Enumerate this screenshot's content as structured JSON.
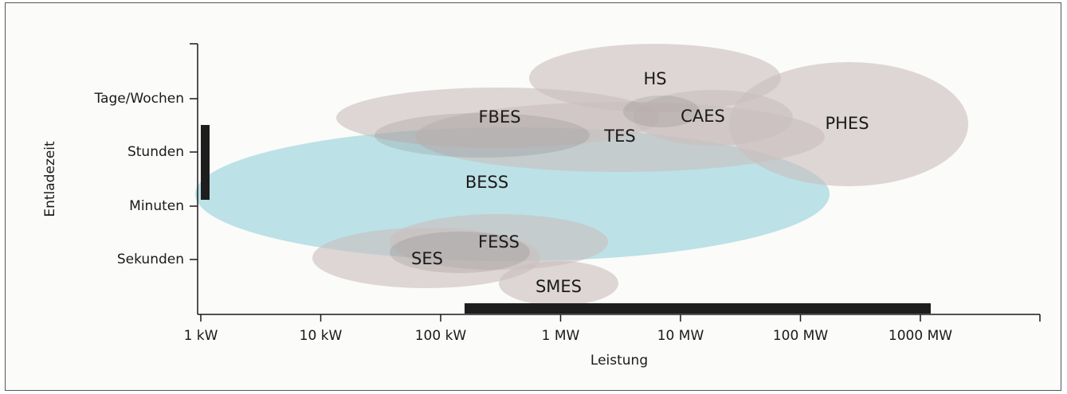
{
  "chart_data": {
    "type": "scatter",
    "xlabel": "Leistung",
    "ylabel": "Entladezeit",
    "x_ticks": [
      "1 kW",
      "10 kW",
      "100 kW",
      "1 MW",
      "10 MW",
      "100 MW",
      "1000 MW"
    ],
    "y_ticks": [
      "Sekunden",
      "Minuten",
      "Stunden",
      "Tage/Wochen"
    ],
    "colors": {
      "grey_region": "#c9bfbf",
      "bess_region": "#a4d7de",
      "bar": "#1e1e1e"
    },
    "regions": [
      {
        "name": "HS",
        "x_range": [
          "300 kW",
          "200 MW"
        ],
        "y_range": [
          "Stunden",
          "über Tage/Wochen"
        ],
        "color": "grey"
      },
      {
        "name": "PHES",
        "x_range": [
          "20 MW",
          "2000 MW"
        ],
        "y_range": [
          "Minuten",
          "über Tage/Wochen"
        ],
        "color": "grey"
      },
      {
        "name": "FBES",
        "x_range": [
          "30 kW",
          "10 MW"
        ],
        "y_range": [
          "Stunden",
          "Tage/Wochen"
        ],
        "color": "grey"
      },
      {
        "name": "TES",
        "x_range": [
          "300 kW",
          "100 MW"
        ],
        "y_range": [
          "Minuten",
          "Tage/Wochen"
        ],
        "color": "grey"
      },
      {
        "name": "CAES",
        "x_range": [
          "3 MW",
          "300 MW"
        ],
        "y_range": [
          "Stunden",
          "Tage/Wochen"
        ],
        "color": "grey"
      },
      {
        "name": "BESS",
        "x_range": [
          "1 kW",
          "100 MW"
        ],
        "y_range": [
          "Sekunden",
          "Stunden"
        ],
        "color": "blue"
      },
      {
        "name": "FESS",
        "x_range": [
          "50 kW",
          "3 MW"
        ],
        "y_range": [
          "Sekunden",
          "Minuten"
        ],
        "color": "grey"
      },
      {
        "name": "SES",
        "x_range": [
          "10 kW",
          "1 MW"
        ],
        "y_range": [
          "unter Sekunden",
          "Sekunden"
        ],
        "color": "grey"
      },
      {
        "name": "SMES",
        "x_range": [
          "200 kW",
          "3 MW"
        ],
        "y_range": [
          "unter Sekunden",
          "Sekunden"
        ],
        "color": "grey"
      }
    ],
    "bars": [
      {
        "axis": "y",
        "range": [
          "Minuten",
          "Stunden"
        ]
      },
      {
        "axis": "x",
        "range": [
          "100 kW",
          "1000 MW"
        ]
      }
    ]
  }
}
